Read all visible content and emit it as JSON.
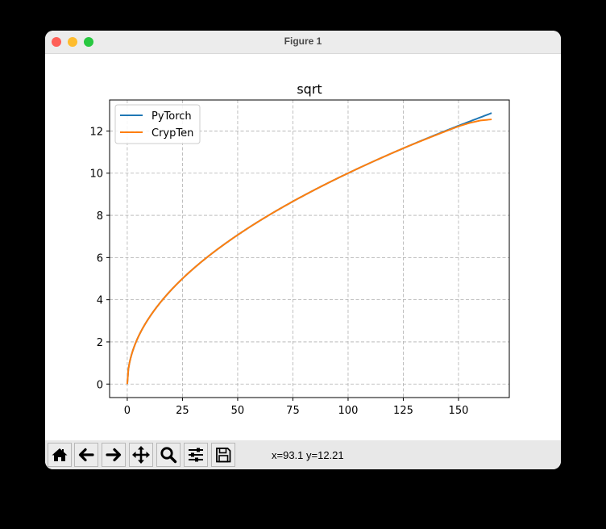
{
  "window": {
    "title": "Figure 1",
    "traffic_lights": {
      "close": "#fe5f57",
      "minimize": "#febc2e",
      "zoom": "#28c840"
    }
  },
  "toolbar": {
    "buttons": [
      {
        "name": "home",
        "icon": "home-icon"
      },
      {
        "name": "back",
        "icon": "arrow-left-icon"
      },
      {
        "name": "forward",
        "icon": "arrow-right-icon"
      },
      {
        "name": "pan",
        "icon": "move-icon"
      },
      {
        "name": "zoom",
        "icon": "magnifier-icon"
      },
      {
        "name": "configure-subplots",
        "icon": "sliders-icon"
      },
      {
        "name": "save",
        "icon": "floppy-disk-icon"
      }
    ],
    "coords": "x=93.1 y=12.21"
  },
  "chart_data": {
    "type": "line",
    "title": "sqrt",
    "xlabel": "",
    "ylabel": "",
    "xlim": [
      -8,
      173
    ],
    "ylim": [
      -0.64,
      13.47
    ],
    "xticks": [
      0,
      25,
      50,
      75,
      100,
      125,
      150
    ],
    "xtick_labels": [
      "0",
      "25",
      "50",
      "75",
      "100",
      "125",
      "150"
    ],
    "yticks": [
      0,
      2,
      4,
      6,
      8,
      10,
      12
    ],
    "ytick_labels": [
      "0",
      "2",
      "4",
      "6",
      "8",
      "10",
      "12"
    ],
    "grid": true,
    "grid_style": "dashed",
    "legend_position": "upper left",
    "series": [
      {
        "name": "PyTorch",
        "color": "#1f77b4",
        "x": [
          0,
          1,
          5,
          10,
          25,
          50,
          75,
          100,
          125,
          150,
          155,
          160,
          165
        ],
        "values": [
          0,
          1,
          2.24,
          3.16,
          5,
          7.07,
          8.66,
          10,
          11.18,
          12.25,
          12.45,
          12.65,
          12.85
        ]
      },
      {
        "name": "CrypTen",
        "color": "#ff7f0e",
        "x": [
          0,
          1,
          5,
          10,
          25,
          50,
          75,
          100,
          125,
          150,
          155,
          160,
          165
        ],
        "values": [
          0,
          1,
          2.24,
          3.16,
          5,
          7.07,
          8.66,
          10,
          11.18,
          12.22,
          12.38,
          12.5,
          12.55
        ]
      }
    ]
  }
}
